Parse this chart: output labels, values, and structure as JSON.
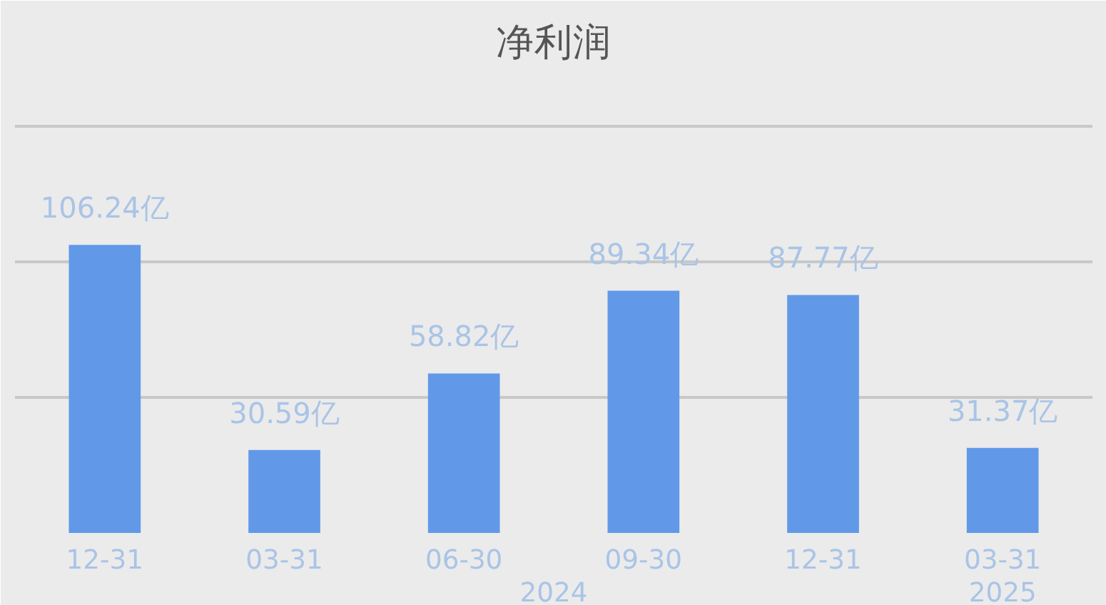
{
  "chart_data": {
    "type": "bar",
    "title": "净利润",
    "categories": [
      "12-31",
      "03-31",
      "06-30",
      "09-30",
      "12-31",
      "03-31"
    ],
    "values": [
      106.24,
      30.59,
      58.82,
      89.34,
      87.77,
      31.37
    ],
    "value_labels": [
      "106.24亿",
      "30.59亿",
      "58.82亿",
      "89.34亿",
      "87.77亿",
      "31.37亿"
    ],
    "color": "#6199e8",
    "ylim": [
      0,
      170
    ],
    "yticks": [
      {
        "value": 0,
        "label": null
      },
      {
        "value": 50,
        "label": null
      },
      {
        "value": 100,
        "label": null
      },
      {
        "value": 150,
        "label": null
      }
    ],
    "grid": "y",
    "tick_labels": "x",
    "annotations": [
      "2024",
      "2025"
    ]
  }
}
